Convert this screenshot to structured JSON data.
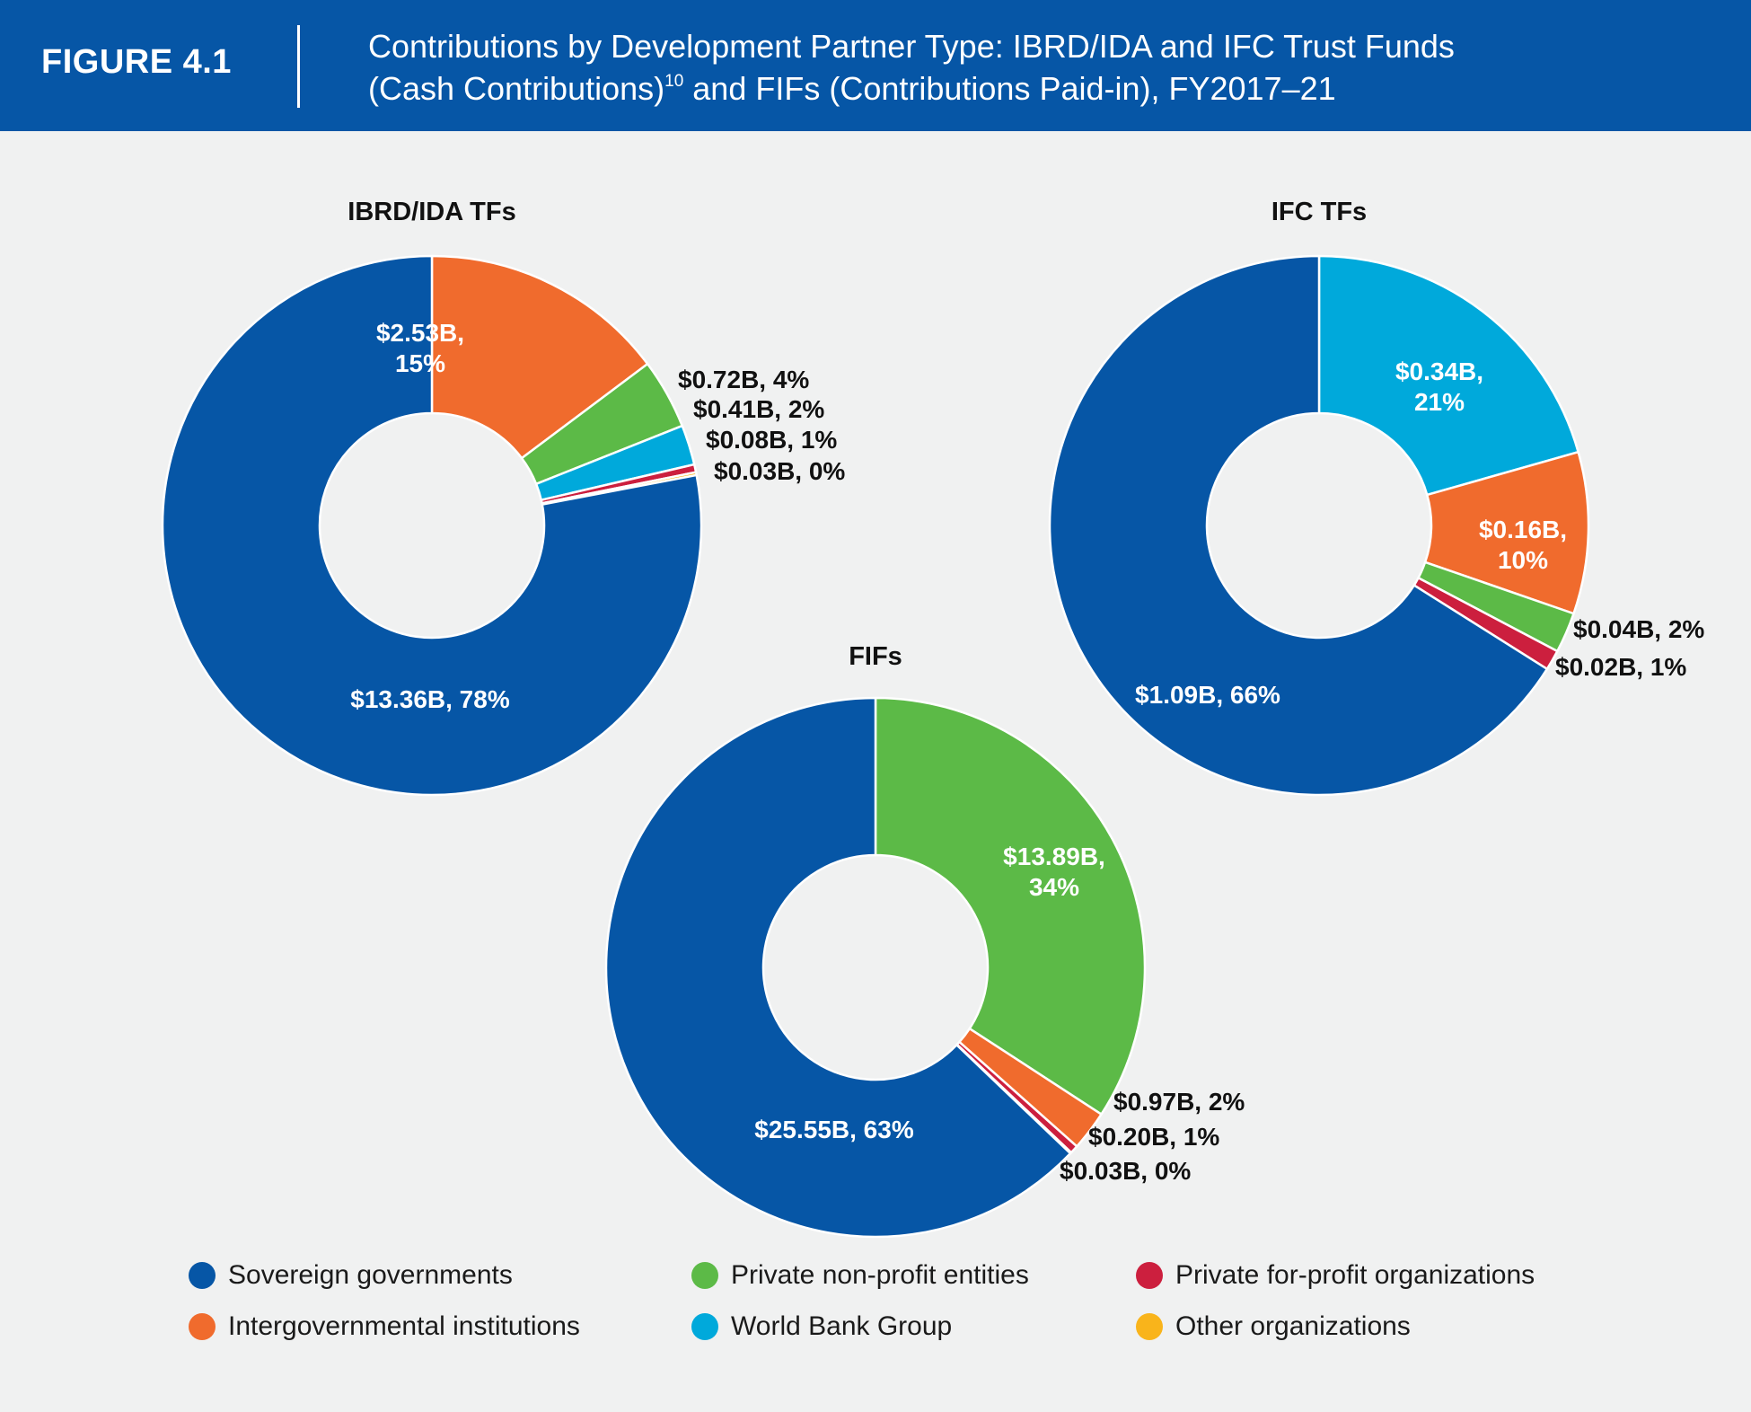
{
  "header": {
    "figure_label": "FIGURE 4.1",
    "title_line1": "Contributions by Development Partner Type: IBRD/IDA and IFC Trust Funds",
    "title_line2_pre": "(Cash Contributions)",
    "title_footnote": "10",
    "title_line2_post": " and FIFs (Contributions Paid-in), FY2017–21"
  },
  "colors": {
    "sovereign": "#0656a6",
    "intergovernmental": "#f06b2d",
    "nonprofit": "#5cba47",
    "wbg": "#00a9db",
    "forprofit": "#cc1f3e",
    "other": "#f9b41b",
    "header_bg": "#0656a6",
    "background": "#f0f1f1"
  },
  "legend": [
    {
      "key": "sovereign",
      "label": "Sovereign governments"
    },
    {
      "key": "nonprofit",
      "label": "Private non-profit entities"
    },
    {
      "key": "forprofit",
      "label": "Private for-profit organizations"
    },
    {
      "key": "intergovernmental",
      "label": "Intergovernmental institutions"
    },
    {
      "key": "wbg",
      "label": "World Bank Group"
    },
    {
      "key": "other",
      "label": "Other organizations"
    }
  ],
  "chart_data": [
    {
      "type": "pie",
      "title": "IBRD/IDA TFs",
      "slices": [
        {
          "key": "intergovernmental",
          "value": 2.53,
          "label_line1": "$2.53B,",
          "label_line2": "15%"
        },
        {
          "key": "nonprofit",
          "value": 0.72,
          "label_line1": "$0.72B, 4%",
          "label_line2": ""
        },
        {
          "key": "wbg",
          "value": 0.41,
          "label_line1": "$0.41B, 2%",
          "label_line2": ""
        },
        {
          "key": "forprofit",
          "value": 0.08,
          "label_line1": "$0.08B, 1%",
          "label_line2": ""
        },
        {
          "key": "other",
          "value": 0.03,
          "label_line1": "$0.03B, 0%",
          "label_line2": ""
        },
        {
          "key": "sovereign",
          "value": 13.36,
          "label_line1": "$13.36B, 78%",
          "label_line2": ""
        }
      ]
    },
    {
      "type": "pie",
      "title": "IFC TFs",
      "slices": [
        {
          "key": "wbg",
          "value": 0.34,
          "label_line1": "$0.34B,",
          "label_line2": "21%"
        },
        {
          "key": "intergovernmental",
          "value": 0.16,
          "label_line1": "$0.16B,",
          "label_line2": "10%"
        },
        {
          "key": "nonprofit",
          "value": 0.04,
          "label_line1": "$0.04B, 2%",
          "label_line2": ""
        },
        {
          "key": "forprofit",
          "value": 0.02,
          "label_line1": "$0.02B, 1%",
          "label_line2": ""
        },
        {
          "key": "sovereign",
          "value": 1.09,
          "label_line1": "$1.09B, 66%",
          "label_line2": ""
        }
      ]
    },
    {
      "type": "pie",
      "title": "FIFs",
      "slices": [
        {
          "key": "nonprofit",
          "value": 13.89,
          "label_line1": "$13.89B,",
          "label_line2": "34%"
        },
        {
          "key": "intergovernmental",
          "value": 0.97,
          "label_line1": "$0.97B, 2%",
          "label_line2": ""
        },
        {
          "key": "forprofit",
          "value": 0.2,
          "label_line1": "$0.20B, 1%",
          "label_line2": ""
        },
        {
          "key": "other",
          "value": 0.03,
          "label_line1": "$0.03B, 0%",
          "label_line2": ""
        },
        {
          "key": "sovereign",
          "value": 25.55,
          "label_line1": "$25.55B, 63%",
          "label_line2": ""
        }
      ]
    }
  ]
}
